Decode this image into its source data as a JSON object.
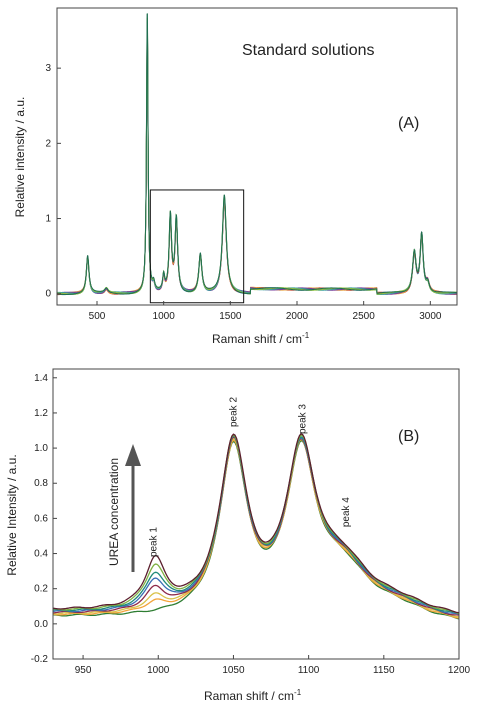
{
  "chart_data": [
    {
      "type": "line",
      "panel_label": "(A)",
      "annotation": "Standard solutions",
      "xlabel": "Raman shift / cm",
      "xlabel_sup": "-1",
      "ylabel": "Relative intensity / a.u.",
      "xlim": [
        200,
        3200
      ],
      "ylim": [
        -0.15,
        3.8
      ],
      "xticks": [
        "500",
        "1000",
        "1500",
        "2000",
        "2500",
        "3000"
      ],
      "yticks": [
        "0",
        "1",
        "2",
        "3"
      ],
      "inset_box_x": [
        900,
        1600
      ],
      "inset_box_y": [
        -0.12,
        1.38
      ],
      "peaks": [
        {
          "x": 430,
          "h": 0.48,
          "w": 12
        },
        {
          "x": 570,
          "h": 0.06,
          "w": 15
        },
        {
          "x": 877,
          "h": 3.62,
          "w": 7
        },
        {
          "x": 925,
          "h": 0.1,
          "w": 10
        },
        {
          "x": 1000,
          "h": 0.2,
          "w": 9
        },
        {
          "x": 1050,
          "h": 0.98,
          "w": 11
        },
        {
          "x": 1095,
          "h": 0.95,
          "w": 12
        },
        {
          "x": 1275,
          "h": 0.5,
          "w": 14
        },
        {
          "x": 1455,
          "h": 1.25,
          "w": 18
        },
        {
          "x": 2880,
          "h": 0.52,
          "w": 16
        },
        {
          "x": 2935,
          "h": 0.75,
          "w": 14
        },
        {
          "x": 2980,
          "h": 0.12,
          "w": 15
        }
      ],
      "series_colors": [
        "#2f8a3a",
        "#4a7fc0",
        "#c0392b",
        "#e6a23c",
        "#7a3b9c",
        "#3aa0a0",
        "#8fbf3f",
        "#1f6f50"
      ]
    },
    {
      "type": "line",
      "panel_label": "(B)",
      "xlabel": "Raman shift / cm",
      "xlabel_sup": "-1",
      "ylabel": "Relative Intensity / a.u.",
      "xlim": [
        930,
        1200
      ],
      "ylim": [
        -0.2,
        1.45
      ],
      "xticks": [
        "950",
        "1000",
        "1050",
        "1100",
        "1150",
        "1200"
      ],
      "yticks": [
        "-0.2",
        "0.0",
        "0.2",
        "0.4",
        "0.6",
        "0.8",
        "1.0",
        "1.2",
        "1.4"
      ],
      "arrow_label": "UREA concentration",
      "peak_labels": [
        {
          "text": "peak 1",
          "x": 997,
          "y": 0.38
        },
        {
          "text": "peak 2",
          "x": 1050,
          "y": 1.12
        },
        {
          "text": "peak 3",
          "x": 1096,
          "y": 1.08
        },
        {
          "text": "peak 4",
          "x": 1125,
          "y": 0.55
        }
      ],
      "series": [
        {
          "color": "#2e7d32",
          "peak1": 0.0
        },
        {
          "color": "#f2a33a",
          "peak1": 0.05
        },
        {
          "color": "#d9c24a",
          "peak1": 0.08
        },
        {
          "color": "#8e2a4a",
          "peak1": 0.12
        },
        {
          "color": "#3b6fb6",
          "peak1": 0.16
        },
        {
          "color": "#1f8a7a",
          "peak1": 0.19
        },
        {
          "color": "#7fb042",
          "peak1": 0.23
        },
        {
          "color": "#5b1f2e",
          "peak1": 0.27
        }
      ]
    }
  ]
}
